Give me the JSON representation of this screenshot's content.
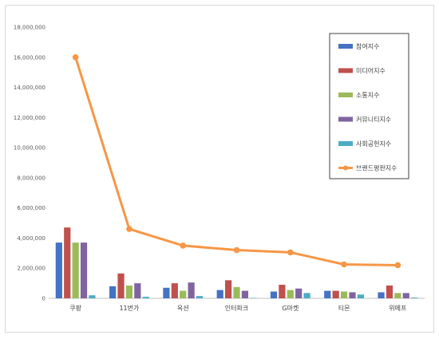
{
  "chart_data": {
    "type": "bar",
    "title": "",
    "xlabel": "",
    "ylabel": "",
    "ylim": [
      0,
      18000000
    ],
    "yticks": [
      0,
      2000000,
      4000000,
      6000000,
      8000000,
      10000000,
      12000000,
      14000000,
      16000000,
      18000000
    ],
    "ytick_labels": [
      "0",
      "2,000,000",
      "4,000,000",
      "6,000,000",
      "8,000,000",
      "10,000,000",
      "12,000,000",
      "14,000,000",
      "16,000,000",
      "18,000,000"
    ],
    "grid": false,
    "legend_position": "right",
    "categories": [
      "쿠팡",
      "11번가",
      "옥션",
      "인터파크",
      "G마켓",
      "티몬",
      "위메프"
    ],
    "series": [
      {
        "name": "참여지수",
        "type": "bar",
        "color": "#4472c4",
        "values": [
          3700000,
          800000,
          700000,
          550000,
          450000,
          500000,
          400000
        ]
      },
      {
        "name": "미디어지수",
        "type": "bar",
        "color": "#c0504d",
        "values": [
          4700000,
          1650000,
          1000000,
          1200000,
          900000,
          500000,
          850000
        ]
      },
      {
        "name": "소통지수",
        "type": "bar",
        "color": "#9bbb59",
        "values": [
          3700000,
          850000,
          500000,
          750000,
          550000,
          450000,
          350000
        ]
      },
      {
        "name": "커뮤니티지수",
        "type": "bar",
        "color": "#8064a2",
        "values": [
          3700000,
          1000000,
          1050000,
          500000,
          650000,
          400000,
          350000
        ]
      },
      {
        "name": "사회공헌지수",
        "type": "bar",
        "color": "#4bacc6",
        "values": [
          200000,
          100000,
          150000,
          30000,
          350000,
          250000,
          50000
        ]
      },
      {
        "name": "브랜드평판지수",
        "type": "line",
        "color": "#f79646",
        "values": [
          16000000,
          4600000,
          3500000,
          3200000,
          3050000,
          2250000,
          2200000
        ]
      }
    ]
  }
}
